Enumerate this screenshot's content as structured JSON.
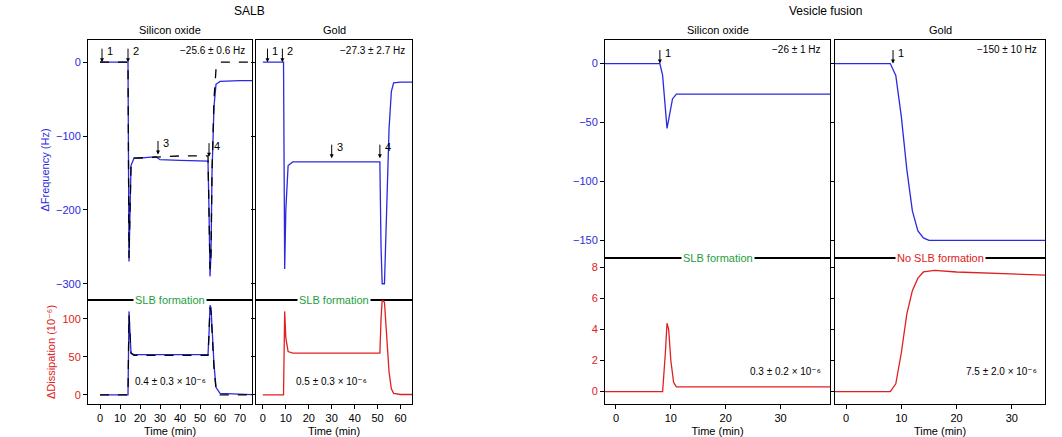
{
  "chart_data": [
    {
      "type": "line",
      "group": "SALB",
      "title": "Silicon oxide",
      "x_label": "Time (min)",
      "xlim": [
        -6,
        76
      ],
      "xticks": [
        0,
        10,
        20,
        30,
        40,
        50,
        60,
        70
      ],
      "frequency": {
        "y_label": "ΔFrequency (Hz)",
        "ylim": [
          -322,
          30
        ],
        "yticks": [
          -300,
          -200,
          -100,
          0
        ],
        "color": "#2a2ae0",
        "result": "−25.6 ± 0.6 Hz",
        "series": [
          {
            "color": "#2a2ae0",
            "line_style": "solid",
            "x": [
              0,
              14,
              14.5,
              15,
              15.5,
              17,
              20,
              28,
              30,
              40,
              50,
              54,
              54.5,
              55,
              55.5,
              56,
              57,
              58,
              60,
              65,
              70,
              76
            ],
            "values": [
              0,
              0,
              -270,
              -200,
              -140,
              -130,
              -130,
              -128,
              -132,
              -133,
              -134,
              -134,
              -200,
              -290,
              -260,
              -150,
              -60,
              -30,
              -26,
              -25,
              -25,
              -25
            ]
          },
          {
            "color": "#000000",
            "line_style": "dashed",
            "x": [
              0,
              14,
              14.5,
              15,
              15.5,
              17,
              30,
              40,
              54,
              54.5,
              55,
              55.5,
              56,
              57,
              58,
              60,
              70,
              76
            ],
            "values": [
              0,
              0,
              -265,
              -200,
              -140,
              -130,
              -128,
              -127,
              -127,
              -200,
              -280,
              -260,
              -150,
              -50,
              -10,
              0,
              0,
              0
            ]
          }
        ],
        "annotations": [
          {
            "text": "1",
            "x": 1,
            "y": 0
          },
          {
            "text": "2",
            "x": 14,
            "y": 0
          },
          {
            "text": "3",
            "x": 29,
            "y": -125
          },
          {
            "text": "4",
            "x": 54.5,
            "y": -128
          }
        ]
      },
      "dissipation": {
        "y_label": "ΔDissipation (10⁻⁶)",
        "ylim": [
          -12,
          125
        ],
        "yticks": [
          0,
          50,
          100
        ],
        "color": "#e02020",
        "result": "0.4 ± 0.3 × 10⁻⁶",
        "series": [
          {
            "color": "#2a2ae0",
            "line_style": "solid",
            "x": [
              0,
              14,
              14.5,
              15,
              15.5,
              17,
              30,
              40,
              54,
              54.5,
              55,
              55.5,
              56,
              57,
              58,
              60,
              76
            ],
            "values": [
              0,
              0,
              110,
              80,
              55,
              53,
              53,
              53,
              53,
              80,
              118,
              115,
              90,
              40,
              10,
              2,
              0.4
            ]
          },
          {
            "color": "#000000",
            "line_style": "dashed",
            "x": [
              0,
              14,
              14.5,
              15,
              15.5,
              17,
              30,
              40,
              54,
              54.5,
              55,
              55.5,
              56,
              57,
              58,
              60,
              76
            ],
            "values": [
              0,
              0,
              105,
              80,
              55,
              52,
              52,
              52,
              52,
              80,
              115,
              110,
              85,
              35,
              8,
              0,
              0
            ]
          }
        ]
      },
      "outcome": {
        "text": "SLB formation",
        "color": "#1f9e3f"
      }
    },
    {
      "type": "line",
      "group": "SALB",
      "title": "Gold",
      "x_label": "Time (min)",
      "tick_labels": "x",
      "xlim": [
        -3,
        65
      ],
      "xticks": [
        0,
        10,
        20,
        30,
        40,
        50,
        60
      ],
      "frequency": {
        "ylim": [
          -322,
          30
        ],
        "yticks": [
          -300,
          -200,
          -100,
          0
        ],
        "color": "#2a2ae0",
        "result": "−27.3 ± 2.7 Hz",
        "series": [
          {
            "color": "#2a2ae0",
            "line_style": "solid",
            "x": [
              0,
              9,
              9.5,
              10,
              11,
              13,
              30,
              51,
              51.5,
              52,
              53,
              54,
              55,
              56,
              57,
              60,
              65
            ],
            "values": [
              0,
              0,
              -280,
              -200,
              -140,
              -135,
              -135,
              -135,
              -250,
              -300,
              -300,
              -200,
              -90,
              -40,
              -28,
              -27,
              -27
            ]
          }
        ],
        "annotations": [
          {
            "text": "1",
            "x": 2,
            "y": 0
          },
          {
            "text": "2",
            "x": 8.5,
            "y": 0
          },
          {
            "text": "3",
            "x": 30,
            "y": -130
          },
          {
            "text": "4",
            "x": 51,
            "y": -130
          }
        ]
      },
      "dissipation": {
        "ylim": [
          -12,
          125
        ],
        "yticks": [
          0,
          50,
          100
        ],
        "color": "#e02020",
        "result": "0.5 ± 0.3 × 10⁻⁶",
        "series": [
          {
            "color": "#e02020",
            "line_style": "solid",
            "x": [
              0,
              9,
              9.5,
              10,
              11,
              13,
              30,
              51,
              51.5,
              52,
              53,
              54,
              55,
              56,
              57,
              60,
              65
            ],
            "values": [
              0,
              0,
              110,
              75,
              57,
              55,
              55,
              55,
              100,
              125,
              122,
              80,
              30,
              8,
              2,
              0.5,
              0.5
            ]
          }
        ]
      },
      "outcome": {
        "text": "SLB formation",
        "color": "#1f9e3f"
      }
    },
    {
      "type": "line",
      "group": "Vesicle fusion",
      "title": "Silicon oxide",
      "x_label": "Time (min)",
      "xlim": [
        -2,
        39
      ],
      "xticks": [
        0,
        10,
        20,
        30
      ],
      "frequency": {
        "ylim": [
          -165,
          20
        ],
        "yticks": [
          -150,
          -100,
          -50,
          0
        ],
        "color": "#2a2ae0",
        "result": "−26 ± 1 Hz",
        "series": [
          {
            "color": "#2a2ae0",
            "line_style": "solid",
            "x": [
              -2,
              8,
              8.5,
              9,
              9.3,
              9.7,
              10.3,
              11,
              15,
              20,
              39
            ],
            "values": [
              0,
              0,
              -10,
              -40,
              -55,
              -45,
              -30,
              -26,
              -26,
              -26,
              -26
            ]
          }
        ],
        "annotations": [
          {
            "text": "1",
            "x": 8,
            "y": 0
          }
        ]
      },
      "dissipation": {
        "ylim": [
          -0.8,
          8.6
        ],
        "yticks": [
          0,
          2,
          4,
          6,
          8
        ],
        "color": "#e02020",
        "result": "0.3 ± 0.2 × 10⁻⁶",
        "series": [
          {
            "color": "#e02020",
            "line_style": "solid",
            "x": [
              -2,
              8.5,
              9,
              9.3,
              9.6,
              10,
              10.5,
              11,
              15,
              39
            ],
            "values": [
              0,
              0,
              2.5,
              4.4,
              4,
              2,
              0.6,
              0.3,
              0.3,
              0.3
            ]
          }
        ]
      },
      "outcome": {
        "text": "SLB formation",
        "color": "#1f9e3f"
      }
    },
    {
      "type": "line",
      "group": "Vesicle fusion",
      "title": "Gold",
      "x_label": "Time (min)",
      "tick_labels": "x",
      "xlim": [
        -2,
        36
      ],
      "xticks": [
        0,
        10,
        20,
        30
      ],
      "frequency": {
        "ylim": [
          -165,
          20
        ],
        "yticks": [
          -150,
          -100,
          -50,
          0
        ],
        "color": "#2a2ae0",
        "result": "−150 ± 10 Hz",
        "series": [
          {
            "color": "#2a2ae0",
            "line_style": "solid",
            "x": [
              -2,
              8,
              9,
              10,
              11,
              12,
              13,
              14,
              15,
              17,
              20,
              36
            ],
            "values": [
              0,
              0,
              -10,
              -45,
              -90,
              -125,
              -142,
              -148,
              -150,
              -150,
              -150,
              -150
            ]
          }
        ],
        "annotations": [
          {
            "text": "1",
            "x": 8.5,
            "y": 0
          }
        ]
      },
      "dissipation": {
        "ylim": [
          -0.8,
          8.6
        ],
        "yticks": [
          0,
          2,
          4,
          6,
          8
        ],
        "color": "#e02020",
        "result": "7.5 ± 2.0 × 10⁻⁶",
        "series": [
          {
            "color": "#e02020",
            "line_style": "solid",
            "x": [
              -2,
              8,
              9,
              10,
              11,
              12,
              13,
              14,
              16,
              20,
              36
            ],
            "values": [
              0,
              0,
              0.5,
              2.5,
              5,
              6.5,
              7.3,
              7.7,
              7.8,
              7.7,
              7.5
            ]
          }
        ]
      },
      "outcome": {
        "text": "No SLB formation",
        "color": "#e02020"
      }
    }
  ]
}
